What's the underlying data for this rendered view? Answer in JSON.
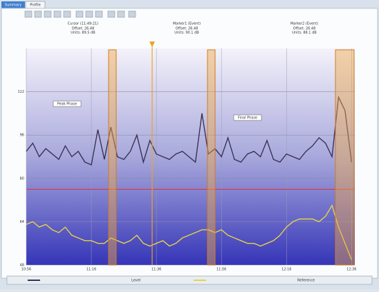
{
  "tabs": [
    "Summary",
    "Profile"
  ],
  "header": [
    {
      "title": "Cursor (11:49:21)",
      "lines": [
        "Offset: 26.48",
        "Units: 89.5 dB"
      ]
    },
    {
      "title": "Marker1 (Event)",
      "lines": [
        "Offset: 26.48",
        "Units: 90.1 dB"
      ]
    },
    {
      "title": "Marker2 (Event)",
      "lines": [
        "Offset: 26.48",
        "Units: 88.1 dB"
      ]
    }
  ],
  "chart_data": {
    "type": "line",
    "x": [
      656,
      658,
      660,
      662,
      664,
      666,
      668,
      670,
      672,
      674,
      676,
      678,
      680,
      682,
      684,
      686,
      688,
      690,
      692,
      694,
      696,
      698,
      700,
      702,
      704,
      706,
      708,
      710,
      712,
      714,
      716,
      718,
      720,
      722,
      724,
      726,
      728,
      730,
      732,
      734,
      736,
      738,
      740,
      742,
      744,
      746,
      748,
      750,
      752,
      754,
      756
    ],
    "series": [
      {
        "name": "Level",
        "color": "#3b3052",
        "values": [
          90,
          93,
          88,
          91,
          89,
          87,
          92,
          88,
          90,
          86,
          85,
          98,
          87,
          99,
          88,
          87,
          90,
          96,
          86,
          94,
          89,
          88,
          87,
          89,
          90,
          88,
          86,
          104,
          89,
          91,
          88,
          95,
          87,
          86,
          89,
          90,
          88,
          94,
          87,
          86,
          89,
          88,
          87,
          90,
          92,
          95,
          93,
          88,
          110,
          105,
          86
        ]
      },
      {
        "name": "Reference",
        "color": "#e6d34a",
        "values": [
          63,
          64,
          62,
          63,
          61,
          60,
          62,
          59,
          58,
          57,
          57,
          56,
          56,
          58,
          57,
          56,
          57,
          59,
          56,
          55,
          56,
          57,
          55,
          56,
          58,
          59,
          60,
          61,
          61,
          60,
          61,
          59,
          58,
          57,
          56,
          56,
          55,
          56,
          57,
          59,
          62,
          64,
          65,
          65,
          65,
          64,
          66,
          70,
          62,
          56,
          50
        ]
      }
    ],
    "xlim": [
      656,
      757
    ],
    "xticks": [
      {
        "value": 656,
        "label": "10:56"
      },
      {
        "value": 676,
        "label": "11:16"
      },
      {
        "value": 696,
        "label": "11:36"
      },
      {
        "value": 716,
        "label": "11:56"
      },
      {
        "value": 736,
        "label": "12:16"
      },
      {
        "value": 756,
        "label": "12:36"
      }
    ],
    "ylim": [
      48,
      128
    ],
    "yticks": [
      48,
      64,
      80,
      96,
      112
    ],
    "grid": true,
    "limit_line": 76,
    "annotations": [
      "Peak Phase",
      "Final Phase"
    ]
  }
}
